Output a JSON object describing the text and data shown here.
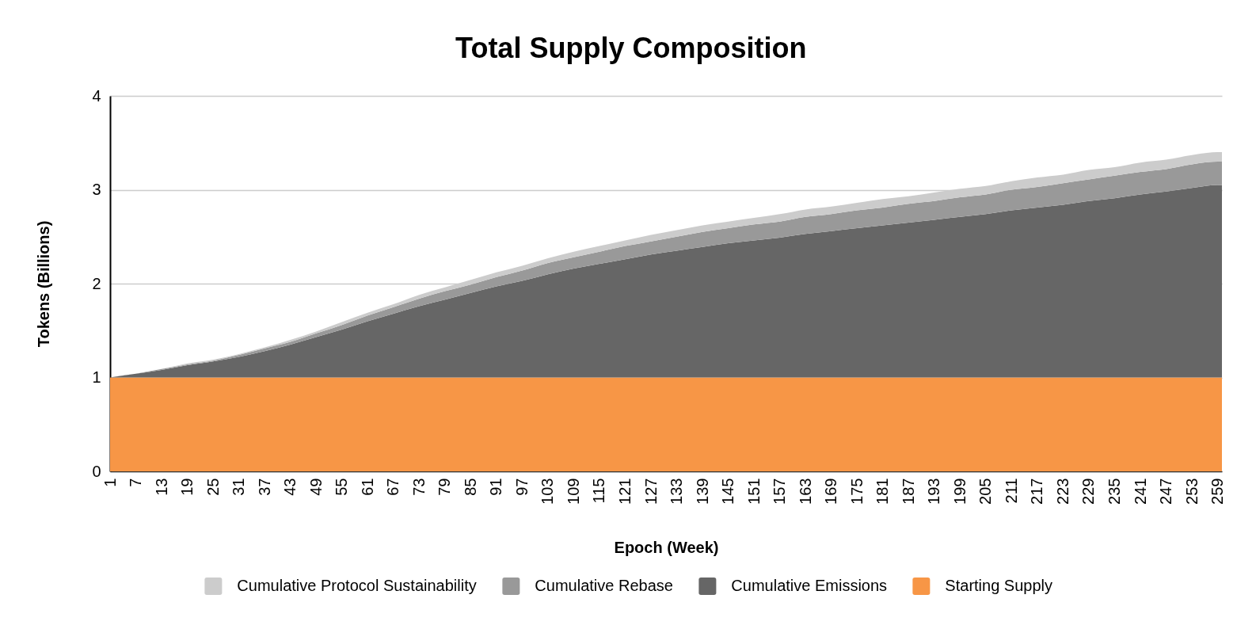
{
  "chart_data": {
    "type": "area",
    "title": "Total Supply Composition",
    "xlabel": "Epoch (Week)",
    "ylabel": "Tokens (Billions)",
    "stacked": true,
    "grid": "y",
    "legend": "bottom",
    "x": [
      1,
      7,
      13,
      19,
      25,
      31,
      37,
      43,
      49,
      55,
      61,
      67,
      73,
      79,
      85,
      91,
      97,
      103,
      109,
      115,
      121,
      127,
      133,
      139,
      145,
      151,
      157,
      163,
      169,
      175,
      181,
      187,
      193,
      199,
      205,
      211,
      217,
      223,
      229,
      235,
      241,
      247,
      253,
      259,
      260
    ],
    "xlim": [
      1,
      260
    ],
    "xticks": [
      1,
      7,
      13,
      19,
      25,
      31,
      37,
      43,
      49,
      55,
      61,
      67,
      73,
      79,
      85,
      91,
      97,
      103,
      109,
      115,
      121,
      127,
      133,
      139,
      145,
      151,
      157,
      163,
      169,
      175,
      181,
      187,
      193,
      199,
      205,
      211,
      217,
      223,
      229,
      235,
      241,
      247,
      253,
      259
    ],
    "ylim": [
      0,
      4
    ],
    "yticks": [
      0,
      1,
      2,
      3,
      4
    ],
    "series": [
      {
        "name": "Starting Supply",
        "color": "#f79646",
        "values": [
          1,
          1,
          1,
          1,
          1,
          1,
          1,
          1,
          1,
          1,
          1,
          1,
          1,
          1,
          1,
          1,
          1,
          1,
          1,
          1,
          1,
          1,
          1,
          1,
          1,
          1,
          1,
          1,
          1,
          1,
          1,
          1,
          1,
          1,
          1,
          1,
          1,
          1,
          1,
          1,
          1,
          1,
          1,
          1,
          1
        ]
      },
      {
        "name": "Cumulative Emissions",
        "color": "#666666",
        "values": [
          0,
          0.04,
          0.08,
          0.13,
          0.17,
          0.22,
          0.28,
          0.35,
          0.43,
          0.51,
          0.6,
          0.68,
          0.76,
          0.83,
          0.9,
          0.97,
          1.03,
          1.1,
          1.16,
          1.21,
          1.26,
          1.31,
          1.35,
          1.39,
          1.43,
          1.46,
          1.49,
          1.53,
          1.56,
          1.59,
          1.62,
          1.65,
          1.68,
          1.71,
          1.74,
          1.78,
          1.81,
          1.84,
          1.88,
          1.91,
          1.95,
          1.98,
          2.02,
          2.05,
          2.05
        ]
      },
      {
        "name": "Cumulative Rebase",
        "color": "#999999",
        "values": [
          0,
          0,
          0.01,
          0.01,
          0.01,
          0.02,
          0.03,
          0.03,
          0.04,
          0.05,
          0.06,
          0.07,
          0.08,
          0.09,
          0.09,
          0.1,
          0.11,
          0.12,
          0.12,
          0.13,
          0.14,
          0.14,
          0.15,
          0.16,
          0.16,
          0.17,
          0.17,
          0.18,
          0.18,
          0.19,
          0.19,
          0.2,
          0.2,
          0.21,
          0.21,
          0.22,
          0.22,
          0.23,
          0.23,
          0.24,
          0.24,
          0.24,
          0.25,
          0.25,
          0.25
        ]
      },
      {
        "name": "Cumulative Protocol Sustainability",
        "color": "#cccccc",
        "values": [
          0,
          0,
          0,
          0.01,
          0.01,
          0.01,
          0.01,
          0.02,
          0.02,
          0.03,
          0.03,
          0.03,
          0.04,
          0.04,
          0.05,
          0.05,
          0.05,
          0.05,
          0.06,
          0.06,
          0.06,
          0.07,
          0.07,
          0.07,
          0.07,
          0.07,
          0.08,
          0.08,
          0.08,
          0.08,
          0.09,
          0.08,
          0.09,
          0.09,
          0.09,
          0.09,
          0.1,
          0.09,
          0.1,
          0.09,
          0.1,
          0.1,
          0.1,
          0.1,
          0.1
        ]
      }
    ]
  }
}
